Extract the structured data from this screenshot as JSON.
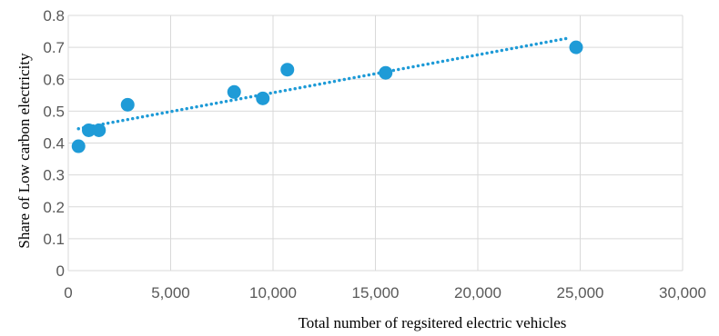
{
  "chart_data": {
    "type": "scatter",
    "title": "",
    "xlabel": "Total number of regsitered electric vehicles",
    "ylabel": "Share of Low carbon electricity",
    "xlim": [
      0,
      30000
    ],
    "ylim": [
      0,
      0.8
    ],
    "x_ticks": [
      "0",
      "5,000",
      "10,000",
      "15,000",
      "20,000",
      "25,000",
      "30,000"
    ],
    "y_ticks": [
      "0",
      "0.1",
      "0.2",
      "0.3",
      "0.4",
      "0.5",
      "0.6",
      "0.7",
      "0.8"
    ],
    "grid": true,
    "legend": "none",
    "colors": {
      "points": "#1f9bd7",
      "trendline": "#1f9bd7",
      "grid": "#d9d9d9"
    },
    "series": [
      {
        "x": [
          500,
          1000,
          1500,
          2900,
          8100,
          9500,
          10700,
          15500,
          24800
        ],
        "y": [
          0.39,
          0.44,
          0.44,
          0.52,
          0.56,
          0.54,
          0.63,
          0.62,
          0.7
        ]
      }
    ],
    "trendline": {
      "type": "linear",
      "style": "dotted",
      "x": [
        500,
        24500
      ],
      "y": [
        0.445,
        0.73
      ]
    }
  }
}
